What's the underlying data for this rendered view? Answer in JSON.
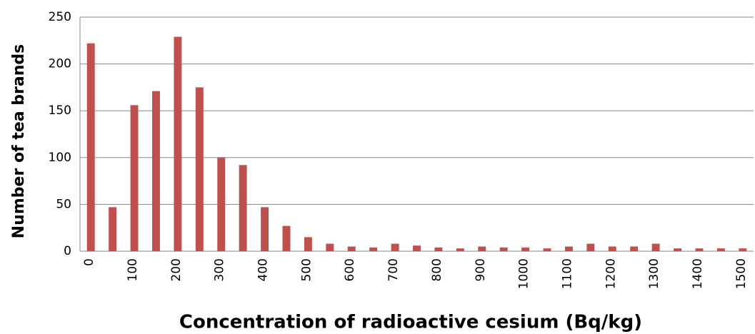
{
  "chart_data": {
    "type": "bar",
    "x_label": "Concentration of radioactive cesium (Bq/kg)",
    "y_label": "Number of tea brands",
    "categories": [
      "0",
      null,
      "100",
      null,
      "200",
      null,
      "300",
      null,
      "400",
      null,
      "500",
      null,
      "600",
      null,
      "700",
      null,
      "800",
      null,
      "900",
      null,
      "1000",
      null,
      "1100",
      null,
      "1200",
      null,
      "1300",
      null,
      "1400",
      null,
      "1500"
    ],
    "values": [
      222,
      47,
      156,
      171,
      229,
      175,
      100,
      92,
      47,
      27,
      15,
      8,
      5,
      4,
      8,
      6,
      4,
      3,
      5,
      4,
      4,
      3,
      5,
      8,
      5,
      5,
      8,
      3,
      3,
      3,
      3
    ],
    "color": "#c0504d",
    "ylim": [
      0,
      250
    ],
    "yticks": [
      0,
      50,
      100,
      150,
      200,
      250
    ],
    "grid": true
  }
}
